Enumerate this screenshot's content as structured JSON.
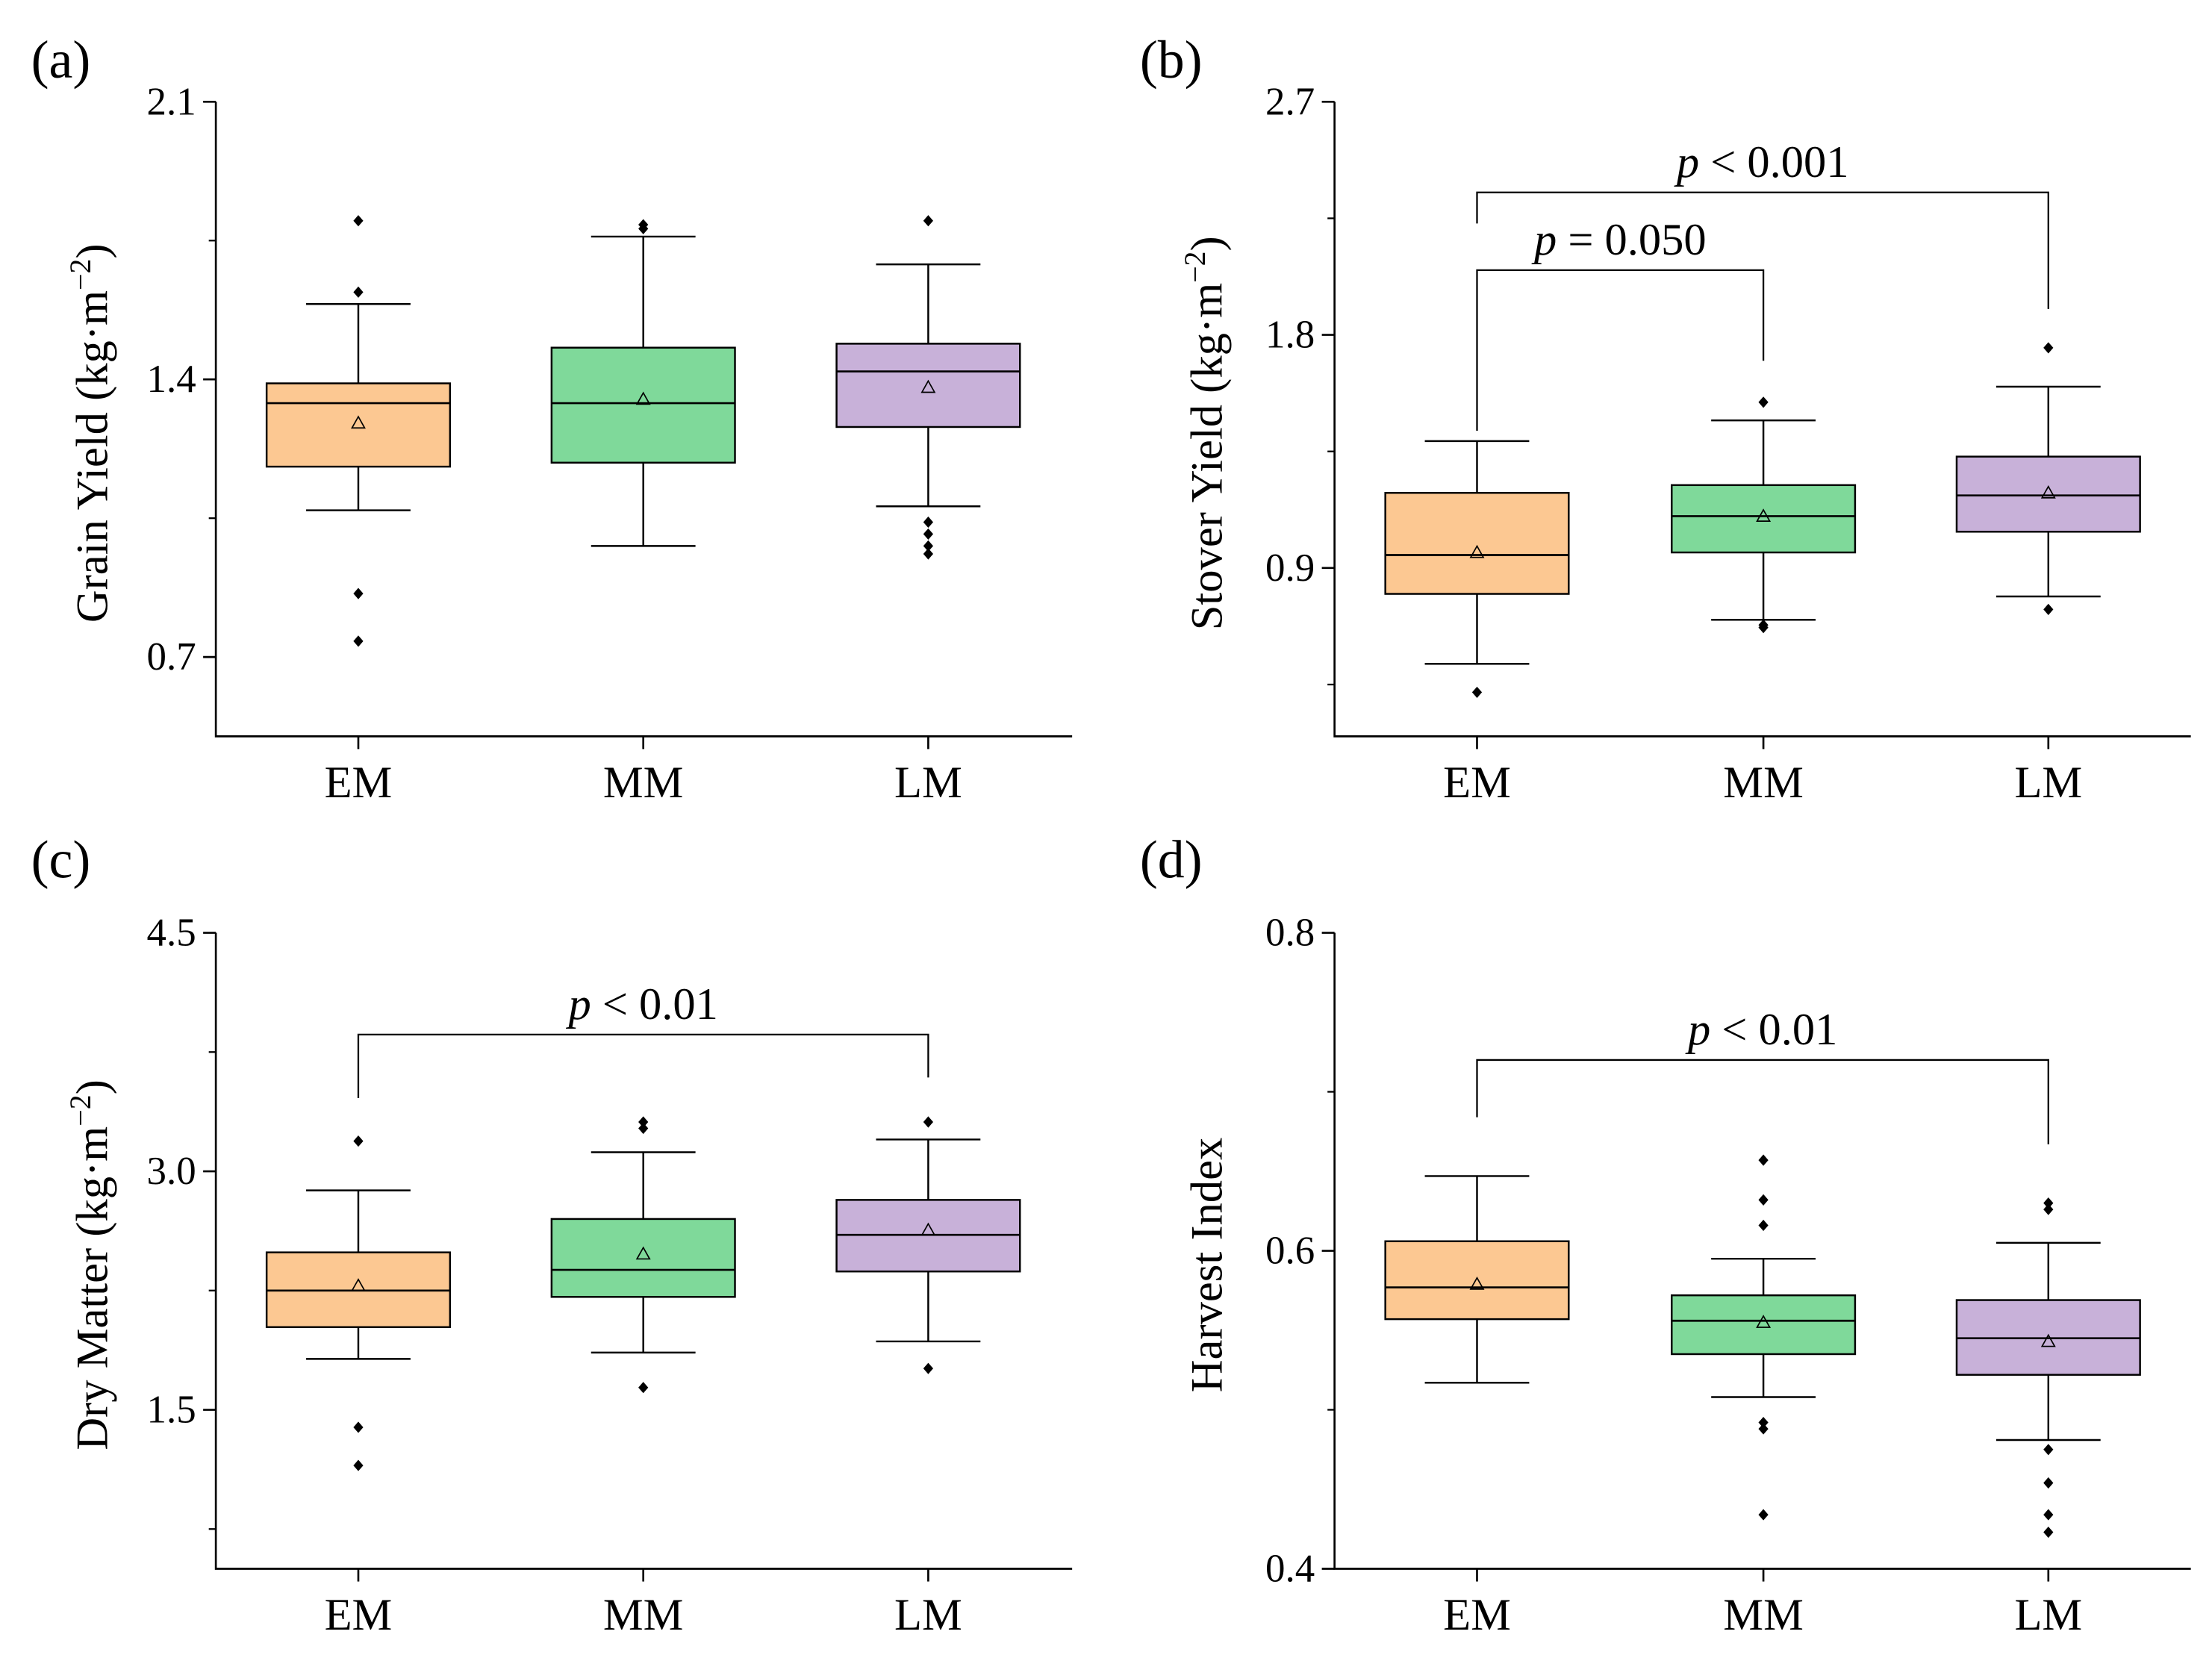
{
  "chart_data": [
    {
      "panel": "(a)",
      "type": "box",
      "title": "",
      "xlabel": "",
      "ylabel": "Grain Yield (kg·m",
      "ylabel_sup": "−2",
      "ylabel_close": ")",
      "ylim": [
        0.5,
        2.1
      ],
      "yticks": [
        "0.7",
        "1.4",
        "2.1"
      ],
      "categories": [
        "EM",
        "MM",
        "LM"
      ],
      "colors": [
        "#FCC892",
        "#7FD99A",
        "#C8B1D9"
      ],
      "boxes": [
        {
          "name": "EM",
          "whisker_low": 1.07,
          "q1": 1.18,
          "median": 1.34,
          "q3": 1.39,
          "whisker_high": 1.59,
          "mean": 1.29,
          "outliers": [
            1.8,
            1.62,
            0.86,
            0.74
          ]
        },
        {
          "name": "MM",
          "whisker_low": 0.98,
          "q1": 1.19,
          "median": 1.34,
          "q3": 1.48,
          "whisker_high": 1.76,
          "mean": 1.35,
          "outliers": [
            1.79,
            1.78
          ]
        },
        {
          "name": "LM",
          "whisker_low": 1.08,
          "q1": 1.28,
          "median": 1.42,
          "q3": 1.49,
          "whisker_high": 1.69,
          "mean": 1.38,
          "outliers": [
            1.8,
            1.04,
            1.01,
            0.98,
            0.96
          ]
        }
      ],
      "brackets": []
    },
    {
      "panel": "(b)",
      "type": "box",
      "title": "",
      "xlabel": "",
      "ylabel": "Stover Yield (kg·m",
      "ylabel_sup": "−2",
      "ylabel_close": ")",
      "ylim": [
        0.25,
        2.7
      ],
      "yticks": [
        "0.9",
        "1.8",
        "2.7"
      ],
      "categories": [
        "EM",
        "MM",
        "LM"
      ],
      "colors": [
        "#FCC892",
        "#7FD99A",
        "#C8B1D9"
      ],
      "boxes": [
        {
          "name": "EM",
          "whisker_low": 0.53,
          "q1": 0.8,
          "median": 0.95,
          "q3": 1.19,
          "whisker_high": 1.39,
          "mean": 0.96,
          "outliers": [
            0.42
          ]
        },
        {
          "name": "MM",
          "whisker_low": 0.7,
          "q1": 0.96,
          "median": 1.1,
          "q3": 1.22,
          "whisker_high": 1.47,
          "mean": 1.1,
          "outliers": [
            1.54,
            0.68,
            0.67
          ]
        },
        {
          "name": "LM",
          "whisker_low": 0.79,
          "q1": 1.04,
          "median": 1.18,
          "q3": 1.33,
          "whisker_high": 1.6,
          "mean": 1.19,
          "outliers": [
            1.75,
            0.74
          ]
        }
      ],
      "brackets": [
        {
          "from": "EM",
          "to": "LM",
          "y": 2.35,
          "left_drop": 0.12,
          "right_drop": 0.45,
          "label": "p < 0.001"
        },
        {
          "from": "EM",
          "to": "MM",
          "y": 2.05,
          "left_drop": 0.62,
          "right_drop": 0.35,
          "label": "p = 0.050"
        }
      ]
    },
    {
      "panel": "(c)",
      "type": "box",
      "title": "",
      "xlabel": "",
      "ylabel": "Dry Matter (kg·m",
      "ylabel_sup": "−2",
      "ylabel_close": ")",
      "ylim": [
        0.5,
        4.5
      ],
      "yticks": [
        "1.5",
        "3.0",
        "4.5"
      ],
      "categories": [
        "EM",
        "MM",
        "LM"
      ],
      "colors": [
        "#FCC892",
        "#7FD99A",
        "#C8B1D9"
      ],
      "boxes": [
        {
          "name": "EM",
          "whisker_low": 1.82,
          "q1": 2.02,
          "median": 2.25,
          "q3": 2.49,
          "whisker_high": 2.88,
          "mean": 2.28,
          "outliers": [
            3.19,
            1.39,
            1.15
          ]
        },
        {
          "name": "MM",
          "whisker_low": 1.86,
          "q1": 2.21,
          "median": 2.38,
          "q3": 2.7,
          "whisker_high": 3.12,
          "mean": 2.48,
          "outliers": [
            3.31,
            3.27,
            1.64
          ]
        },
        {
          "name": "LM",
          "whisker_low": 1.93,
          "q1": 2.37,
          "median": 2.6,
          "q3": 2.82,
          "whisker_high": 3.2,
          "mean": 2.63,
          "outliers": [
            3.31,
            1.76
          ]
        }
      ],
      "brackets": [
        {
          "from": "EM",
          "to": "LM",
          "y": 3.86,
          "left_drop": 0.4,
          "right_drop": 0.27,
          "label": "p < 0.01"
        }
      ]
    },
    {
      "panel": "(d)",
      "type": "box",
      "title": "",
      "xlabel": "",
      "ylabel": "Harvest Index",
      "ylabel_sup": "",
      "ylabel_close": "",
      "ylim": [
        0.4,
        0.8
      ],
      "yticks": [
        "0.4",
        "0.6",
        "0.8"
      ],
      "categories": [
        "EM",
        "MM",
        "LM"
      ],
      "colors": [
        "#FCC892",
        "#7FD99A",
        "#C8B1D9"
      ],
      "boxes": [
        {
          "name": "EM",
          "whisker_low": 0.517,
          "q1": 0.557,
          "median": 0.577,
          "q3": 0.606,
          "whisker_high": 0.647,
          "mean": 0.579,
          "outliers": []
        },
        {
          "name": "MM",
          "whisker_low": 0.508,
          "q1": 0.535,
          "median": 0.556,
          "q3": 0.572,
          "whisker_high": 0.595,
          "mean": 0.555,
          "outliers": [
            0.657,
            0.632,
            0.616,
            0.492,
            0.488,
            0.434
          ]
        },
        {
          "name": "LM",
          "whisker_low": 0.481,
          "q1": 0.522,
          "median": 0.545,
          "q3": 0.569,
          "whisker_high": 0.605,
          "mean": 0.543,
          "outliers": [
            0.63,
            0.626,
            0.475,
            0.454,
            0.434,
            0.423
          ]
        }
      ],
      "brackets": [
        {
          "from": "EM",
          "to": "LM",
          "y": 0.72,
          "left_drop": 0.036,
          "right_drop": 0.053,
          "label": "p < 0.01"
        }
      ]
    }
  ]
}
